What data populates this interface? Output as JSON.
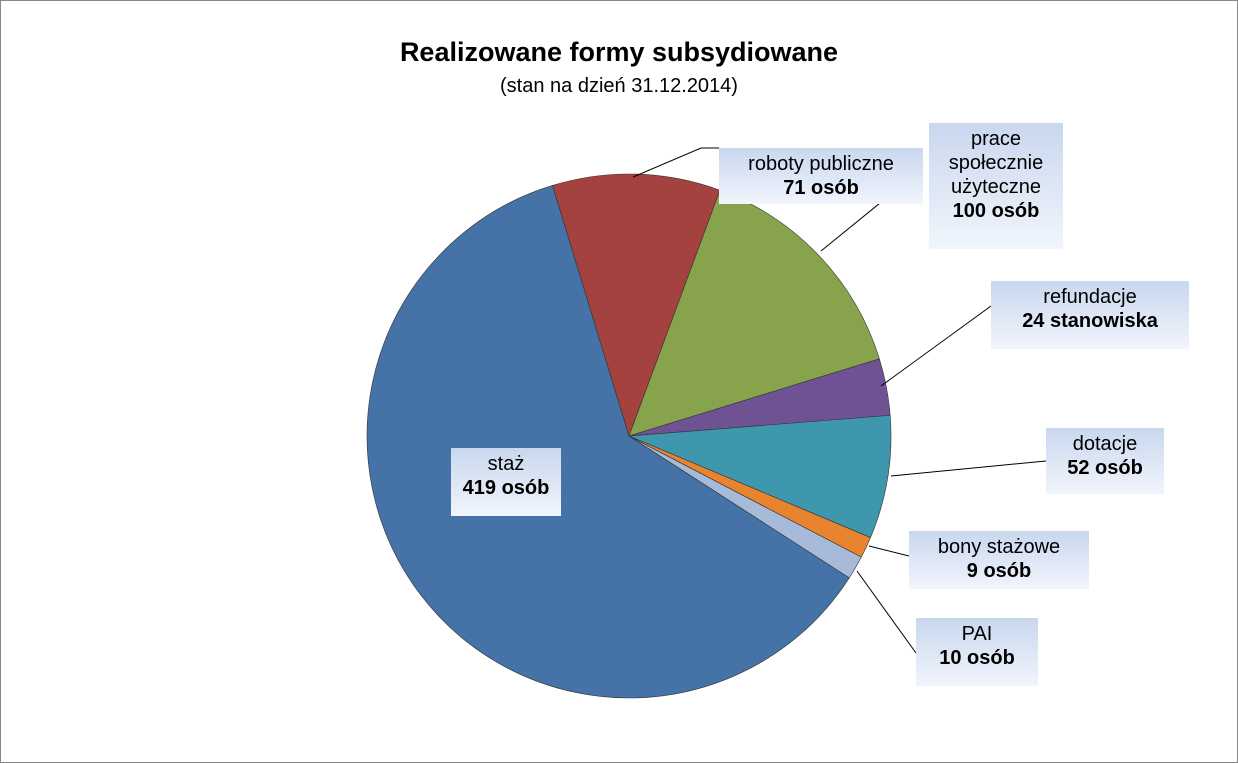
{
  "chart_data": {
    "type": "pie",
    "title": "Realizowane formy subsydiowane",
    "subtitle": "(stan na dzień 31.12.2014)",
    "categories": [
      "roboty publiczne",
      "prace społecznie użyteczne",
      "refundacje",
      "dotacje",
      "bony stażowe",
      "PAI",
      "staż"
    ],
    "values": [
      71,
      100,
      24,
      52,
      9,
      10,
      419
    ],
    "value_labels": [
      "71 osób",
      "100 osób",
      "24 stanowiska",
      "52 osób",
      "9 osób",
      "10 osób",
      "419 osób"
    ],
    "colors": [
      "#a3423f",
      "#87a34b",
      "#6f5294",
      "#3e97ad",
      "#e8832f",
      "#a7bbd9",
      "#4572a7"
    ]
  }
}
